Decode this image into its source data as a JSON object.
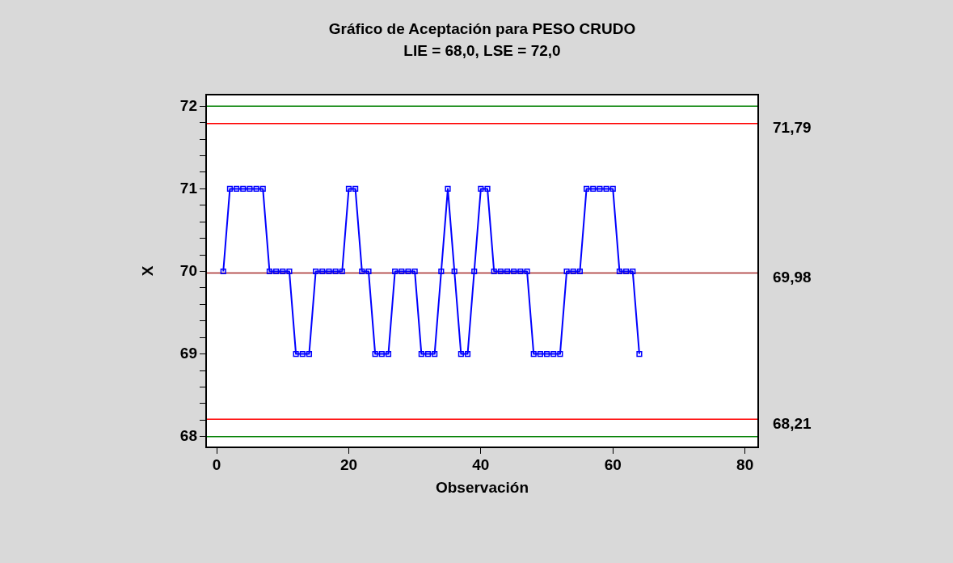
{
  "chart_data": {
    "type": "line",
    "title": "Gráfico de Aceptación para PESO CRUDO",
    "subtitle": "LIE = 68,0, LSE = 72,0",
    "xlabel": "Observación",
    "ylabel": "X",
    "x": [
      1,
      2,
      3,
      4,
      5,
      6,
      7,
      8,
      9,
      10,
      11,
      12,
      13,
      14,
      15,
      16,
      17,
      18,
      19,
      20,
      21,
      22,
      23,
      24,
      25,
      26,
      27,
      28,
      29,
      30,
      31,
      32,
      33,
      34,
      35,
      36,
      37,
      38,
      39,
      40,
      41,
      42,
      43,
      44,
      45,
      46,
      47,
      48,
      49,
      50,
      51,
      52,
      53,
      54,
      55,
      56,
      57,
      58,
      59,
      60,
      61,
      62,
      63,
      64
    ],
    "series": [
      {
        "color": "#0000ff",
        "values": [
          70,
          71,
          71,
          71,
          71,
          71,
          71,
          70,
          70,
          70,
          70,
          69,
          69,
          69,
          70,
          70,
          70,
          70,
          70,
          71,
          71,
          70,
          70,
          69,
          69,
          69,
          70,
          70,
          70,
          70,
          69,
          69,
          69,
          70,
          71,
          70,
          69,
          69,
          70,
          71,
          71,
          70,
          70,
          70,
          70,
          70,
          70,
          69,
          69,
          69,
          69,
          69,
          70,
          70,
          70,
          71,
          71,
          71,
          71,
          71,
          70,
          70,
          70,
          69
        ]
      }
    ],
    "xlim": [
      -1.6,
      82
    ],
    "ylim": [
      67.87,
      72.14
    ],
    "xticks": [
      0,
      20,
      40,
      60,
      80
    ],
    "yticks": [
      68,
      {
        "value": 68.2,
        "label": null
      },
      {
        "value": 68.4,
        "label": null
      },
      {
        "value": 68.6,
        "label": null
      },
      {
        "value": 68.8,
        "label": null
      },
      69,
      {
        "value": 69.2,
        "label": null
      },
      {
        "value": 69.4,
        "label": null
      },
      {
        "value": 69.6,
        "label": null
      },
      {
        "value": 69.8,
        "label": null
      },
      70,
      {
        "value": 70.2,
        "label": null
      },
      {
        "value": 70.4,
        "label": null
      },
      {
        "value": 70.6,
        "label": null
      },
      {
        "value": 70.8,
        "label": null
      },
      71,
      {
        "value": 71.2,
        "label": null
      },
      {
        "value": 71.4,
        "label": null
      },
      {
        "value": 71.6,
        "label": null
      },
      {
        "value": 71.8,
        "label": null
      },
      72
    ],
    "ref_lines": [
      {
        "axis": "y",
        "value": 72,
        "label": null,
        "color": "#008000"
      },
      {
        "axis": "y",
        "value": 71.79,
        "label": "71,79",
        "color": "#ff0000"
      },
      {
        "axis": "y",
        "value": 69.98,
        "label": "69,98",
        "color": "#a52a2a"
      },
      {
        "axis": "y",
        "value": 68.21,
        "label": "68,21",
        "color": "#ff0000"
      },
      {
        "axis": "y",
        "value": 68,
        "label": null,
        "color": "#008000"
      }
    ],
    "marker": "square",
    "line_style": "solid",
    "grid": false,
    "legend": false
  }
}
